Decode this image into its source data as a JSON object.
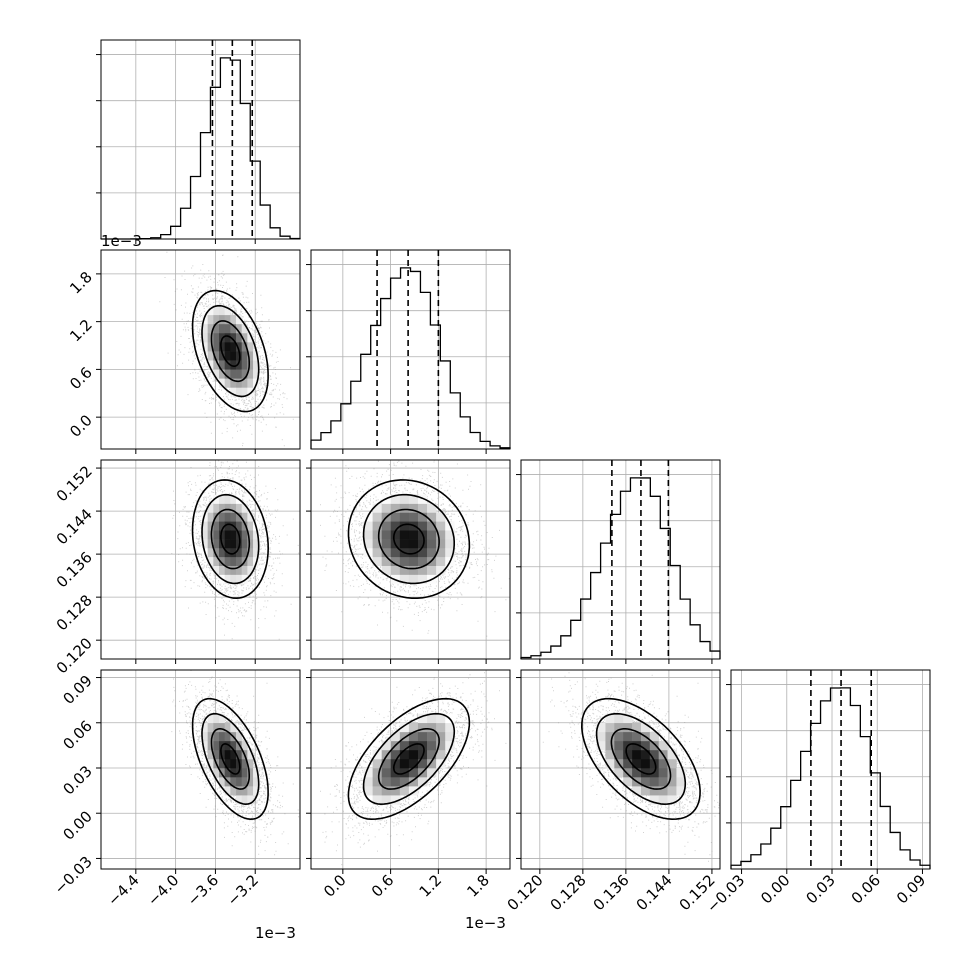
{
  "chart_data": {
    "type": "corner",
    "parameters": [
      {
        "range": [
          -0.00475,
          -0.00275
        ],
        "ticks": [
          -0.0044,
          -0.004,
          -0.0036,
          -0.0032
        ],
        "tick_labels": [
          "−4.4",
          "−4.0",
          "−3.6",
          "−3.2"
        ],
        "offset_text": "1e−3",
        "mean": -0.00345,
        "std": 0.00019,
        "quantiles": [
          -0.00363,
          -0.00343,
          -0.00323
        ]
      },
      {
        "range": [
          -0.0004,
          0.0021
        ],
        "ticks": [
          0.0,
          0.0006,
          0.0012,
          0.0018
        ],
        "tick_labels": [
          "0.0",
          "0.6",
          "1.2",
          "1.8"
        ],
        "offset_text": "1e−3",
        "mean": 0.00083,
        "std": 0.00038,
        "quantiles": [
          0.00043,
          0.00082,
          0.0012
        ]
      },
      {
        "range": [
          0.1165,
          0.1535
        ],
        "ticks": [
          0.12,
          0.128,
          0.136,
          0.144,
          0.152
        ],
        "tick_labels": [
          "0.120",
          "0.128",
          "0.136",
          "0.144",
          "0.152"
        ],
        "offset_text": "",
        "mean": 0.1388,
        "std": 0.0055,
        "quantiles": [
          0.1334,
          0.1388,
          0.1439
        ]
      },
      {
        "range": [
          -0.037,
          0.095
        ],
        "ticks": [
          -0.03,
          0.0,
          0.03,
          0.06,
          0.09
        ],
        "tick_labels": [
          "−0.03",
          "0.00",
          "0.03",
          "0.06",
          "0.09"
        ],
        "offset_text": "",
        "mean": 0.036,
        "std": 0.02,
        "quantiles": [
          0.016,
          0.036,
          0.056
        ]
      }
    ],
    "correlations": [
      {
        "i": 1,
        "j": 0,
        "rho": -0.4
      },
      {
        "i": 2,
        "j": 0,
        "rho": -0.15
      },
      {
        "i": 2,
        "j": 1,
        "rho": -0.1
      },
      {
        "i": 3,
        "j": 0,
        "rho": -0.55
      },
      {
        "i": 3,
        "j": 1,
        "rho": 0.6
      },
      {
        "i": 3,
        "j": 2,
        "rho": -0.55
      }
    ],
    "contour_levels_sigma": [
      0.5,
      1.0,
      1.5,
      2.0
    ],
    "n_samples": 3000,
    "grid": true
  }
}
